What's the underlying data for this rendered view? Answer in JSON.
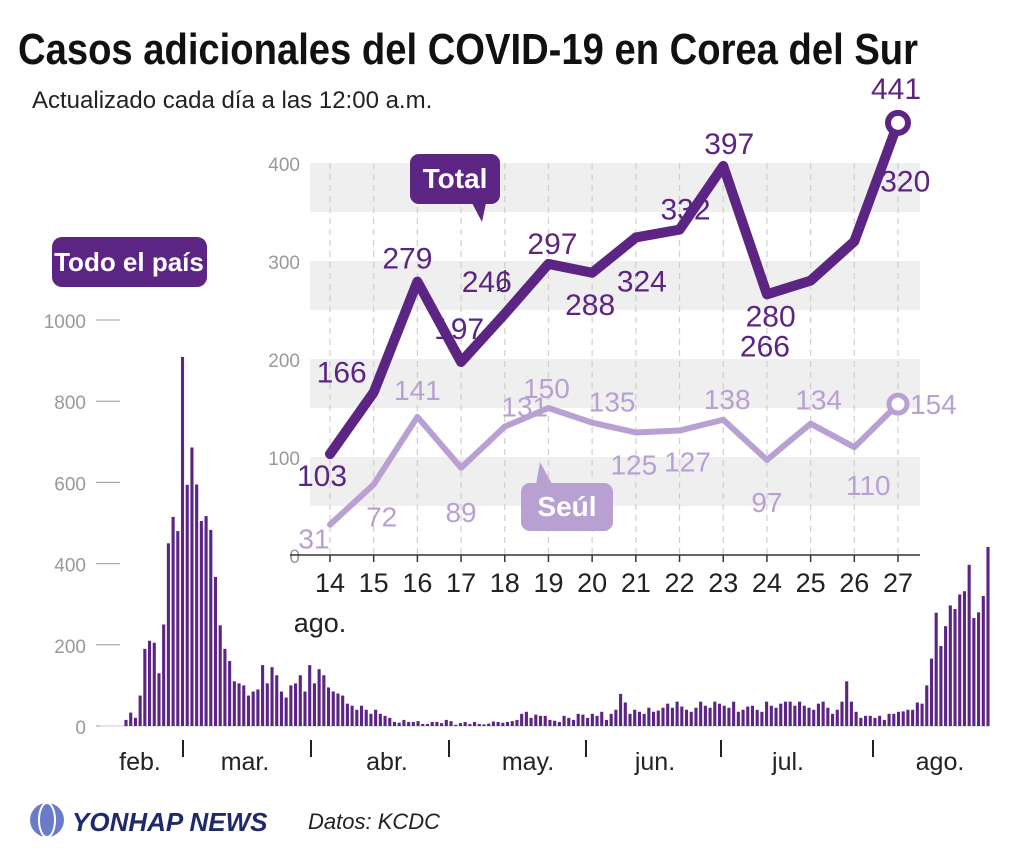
{
  "title": "Casos adicionales del COVID-19 en Corea del Sur",
  "subtitle": "Actualizado cada día a las 12:00 a.m.",
  "colors": {
    "total": "#5c2483",
    "seoul": "#b9a0d2",
    "band": "#efefef",
    "axis": "#333333",
    "tick": "#999999"
  },
  "labels": {
    "total_tag": "Total",
    "seoul_tag": "Seúl",
    "nation_tag": "Todo el país",
    "agency": "YONHAP NEWS",
    "source": "Datos: KCDC"
  },
  "chart_data": [
    {
      "type": "line",
      "title": "Total / Seúl",
      "x": [
        "14",
        "15",
        "16",
        "17",
        "18",
        "19",
        "20",
        "21",
        "22",
        "23",
        "24",
        "25",
        "26",
        "27"
      ],
      "x_unit_label": "ago.",
      "ylim": [
        0,
        450
      ],
      "yticks": [
        0,
        100,
        200,
        300,
        400
      ],
      "series": [
        {
          "name": "Total",
          "values": [
            103,
            166,
            279,
            197,
            246,
            297,
            288,
            324,
            332,
            397,
            266,
            280,
            320,
            441
          ]
        },
        {
          "name": "Seúl",
          "values": [
            31,
            72,
            141,
            89,
            131,
            150,
            135,
            125,
            127,
            138,
            97,
            134,
            110,
            154
          ]
        }
      ]
    },
    {
      "type": "bar",
      "title": "Todo el país",
      "ylim": [
        0,
        1000
      ],
      "yticks": [
        0,
        200,
        400,
        600,
        800,
        1000
      ],
      "months": [
        "feb.",
        "mar.",
        "abr.",
        "may.",
        "jun.",
        "jul.",
        "ago."
      ],
      "values": [
        15,
        33,
        20,
        75,
        190,
        210,
        205,
        130,
        250,
        450,
        515,
        480,
        909,
        594,
        686,
        595,
        505,
        517,
        483,
        367,
        248,
        190,
        160,
        110,
        105,
        100,
        75,
        85,
        90,
        150,
        105,
        145,
        125,
        85,
        70,
        100,
        105,
        125,
        85,
        150,
        105,
        140,
        125,
        95,
        85,
        80,
        75,
        55,
        50,
        40,
        50,
        40,
        30,
        40,
        30,
        25,
        20,
        10,
        8,
        15,
        10,
        10,
        12,
        5,
        5,
        10,
        10,
        7,
        15,
        12,
        3,
        7,
        10,
        5,
        10,
        5,
        4,
        6,
        11,
        10,
        8,
        10,
        12,
        15,
        30,
        35,
        20,
        28,
        25,
        25,
        15,
        13,
        10,
        25,
        20,
        15,
        30,
        28,
        20,
        30,
        25,
        35,
        15,
        30,
        40,
        79,
        58,
        30,
        40,
        35,
        30,
        45,
        35,
        38,
        45,
        55,
        45,
        60,
        48,
        40,
        35,
        45,
        60,
        50,
        45,
        60,
        55,
        50,
        45,
        60,
        35,
        40,
        48,
        50,
        40,
        35,
        60,
        50,
        45,
        55,
        60,
        60,
        50,
        60,
        50,
        45,
        40,
        55,
        60,
        45,
        30,
        40,
        60,
        110,
        60,
        35,
        20,
        25,
        25,
        20,
        25,
        15,
        30,
        30,
        35,
        36,
        40,
        40,
        58,
        55,
        100,
        166,
        279,
        197,
        246,
        297,
        288,
        324,
        332,
        397,
        266,
        280,
        320,
        441
      ]
    }
  ]
}
